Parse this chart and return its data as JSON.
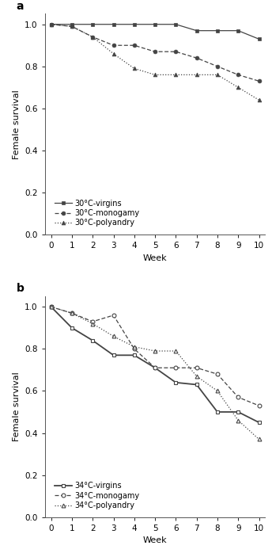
{
  "weeks": [
    0,
    1,
    2,
    3,
    4,
    5,
    6,
    7,
    8,
    9,
    10
  ],
  "panel_a": {
    "title": "a",
    "virgins": [
      1.0,
      1.0,
      1.0,
      1.0,
      1.0,
      1.0,
      1.0,
      0.97,
      0.97,
      0.97,
      0.93
    ],
    "monogamy": [
      1.0,
      0.99,
      0.94,
      0.9,
      0.9,
      0.87,
      0.87,
      0.84,
      0.8,
      0.76,
      0.73
    ],
    "polyandry": [
      1.0,
      0.99,
      0.94,
      0.86,
      0.79,
      0.76,
      0.76,
      0.76,
      0.76,
      0.7,
      0.64
    ],
    "legend": [
      "30°C-virgins",
      "30°C-monogamy",
      "30°C-polyandry"
    ]
  },
  "panel_b": {
    "title": "b",
    "virgins": [
      1.0,
      0.9,
      0.84,
      0.77,
      0.77,
      0.71,
      0.64,
      0.63,
      0.5,
      0.5,
      0.45
    ],
    "monogamy": [
      1.0,
      0.97,
      0.93,
      0.96,
      0.8,
      0.71,
      0.71,
      0.71,
      0.68,
      0.57,
      0.53
    ],
    "polyandry": [
      1.0,
      0.97,
      0.92,
      0.86,
      0.81,
      0.79,
      0.79,
      0.67,
      0.6,
      0.46,
      0.37
    ],
    "legend": [
      "34°C-virgins",
      "34°C-monogamy",
      "34°C-polyandry"
    ]
  },
  "ylabel": "Female survival",
  "xlabel": "Week",
  "ylim": [
    0.0,
    1.05
  ],
  "yticks": [
    0.0,
    0.2,
    0.4,
    0.6,
    0.8,
    1.0
  ],
  "xticks": [
    0,
    1,
    2,
    3,
    4,
    5,
    6,
    7,
    8,
    9,
    10
  ],
  "line_color": "#444444",
  "bg_color": "#ffffff",
  "markersize": 3.5,
  "linewidth": 0.9
}
